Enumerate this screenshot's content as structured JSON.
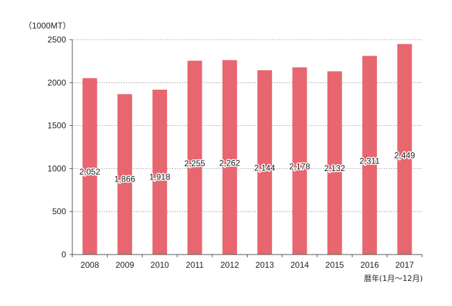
{
  "chart_data": {
    "type": "bar",
    "unit_label": "（1000MT）",
    "xlabel": "暦年(1月～12月)",
    "ylabel": "",
    "categories": [
      "2008",
      "2009",
      "2010",
      "2011",
      "2012",
      "2013",
      "2014",
      "2015",
      "2016",
      "2017"
    ],
    "values": [
      2052,
      1866,
      1918,
      2255,
      2262,
      2144,
      2178,
      2132,
      2311,
      2449
    ],
    "data_labels": [
      "2,052",
      "1,866",
      "1,918",
      "2,255",
      "2,262",
      "2,144",
      "2,178",
      "2,132",
      "2,311",
      "2,449"
    ],
    "ylim": [
      0,
      2500
    ],
    "yticks": [
      0,
      500,
      1000,
      1500,
      2000,
      2500
    ],
    "grid": true,
    "bar_color": "#e8666f",
    "axis_color": "#555555",
    "grid_color": "#888888",
    "label_color": "#1a1a1a"
  }
}
